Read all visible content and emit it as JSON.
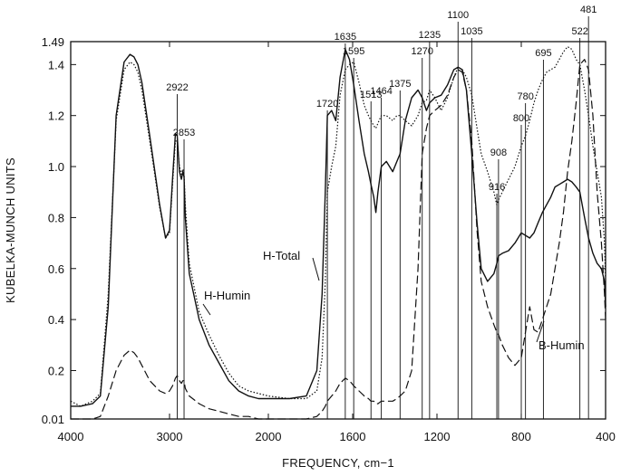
{
  "chart_data": {
    "type": "line",
    "title": "",
    "xlabel": "FREQUENCY, cm−1",
    "ylabel": "KUBELKA-MUNCH  UNITS",
    "x_unit": "cm−1",
    "xlim": [
      4000,
      400
    ],
    "ylim": [
      0.01,
      1.49
    ],
    "x_scale": "piecewise: 4000-2000 compressed, 2000-400 expanded",
    "x_ticks": [
      4000,
      3000,
      2000,
      1600,
      1200,
      800,
      400
    ],
    "x_tick_labels": [
      "4000",
      "3000",
      "2000",
      "1600",
      "1200",
      "800",
      "400"
    ],
    "y_ticks": [
      0.01,
      0.2,
      0.4,
      0.6,
      0.8,
      1.0,
      1.2,
      1.4,
      1.49
    ],
    "y_tick_labels": [
      "0.01",
      "0.2",
      "0.4",
      "0.6",
      "0.8",
      "1.0",
      "1.2",
      "1.4",
      "1.49"
    ],
    "grid": false,
    "peak_labels": [
      {
        "x": 2922,
        "text": "2922",
        "y_top": 1.14
      },
      {
        "x": 2853,
        "text": "2853",
        "y_top": 0.98
      },
      {
        "x": 1720,
        "text": "1720",
        "y_top": 1.2
      },
      {
        "x": 1635,
        "text": "1635",
        "y_top": 1.45
      },
      {
        "x": 1595,
        "text": "1595",
        "y_top": 1.39
      },
      {
        "x": 1513,
        "text": "1513",
        "y_top": 1.14
      },
      {
        "x": 1464,
        "text": "1464",
        "y_top": 1.22
      },
      {
        "x": 1375,
        "text": "1375",
        "y_top": 1.2
      },
      {
        "x": 1270,
        "text": "1270",
        "y_top": 1.3
      },
      {
        "x": 1235,
        "text": "1235",
        "y_top": 1.35
      },
      {
        "x": 1100,
        "text": "1100",
        "y_top": 1.39
      },
      {
        "x": 1035,
        "text": "1035",
        "y_top": 1.36
      },
      {
        "x": 916,
        "text": "916",
        "y_top": 0.73
      },
      {
        "x": 908,
        "text": "908",
        "y_top": 0.88
      },
      {
        "x": 800,
        "text": "800",
        "y_top": 1.02
      },
      {
        "x": 780,
        "text": "780",
        "y_top": 1.13
      },
      {
        "x": 695,
        "text": "695",
        "y_top": 1.33
      },
      {
        "x": 522,
        "text": "522",
        "y_top": 1.42
      },
      {
        "x": 481,
        "text": "481",
        "y_top": 1.47
      }
    ],
    "series": [
      {
        "name": "H-Total",
        "style": "solid",
        "x": [
          4000,
          3900,
          3780,
          3700,
          3620,
          3540,
          3460,
          3400,
          3360,
          3320,
          3280,
          3200,
          3100,
          3040,
          3000,
          2970,
          2940,
          2922,
          2900,
          2880,
          2865,
          2853,
          2840,
          2800,
          2700,
          2600,
          2500,
          2400,
          2300,
          2200,
          2100,
          2000,
          1900,
          1820,
          1770,
          1745,
          1730,
          1720,
          1700,
          1680,
          1660,
          1635,
          1615,
          1595,
          1570,
          1545,
          1525,
          1513,
          1500,
          1490,
          1480,
          1464,
          1440,
          1410,
          1390,
          1375,
          1350,
          1320,
          1290,
          1270,
          1250,
          1235,
          1210,
          1180,
          1150,
          1120,
          1100,
          1080,
          1060,
          1035,
          1010,
          990,
          960,
          930,
          916,
          908,
          890,
          860,
          830,
          800,
          780,
          760,
          740,
          720,
          700,
          680,
          660,
          640,
          620,
          600,
          580,
          560,
          540,
          522,
          500,
          481,
          460,
          440,
          420,
          405,
          400
        ],
        "values": [
          0.06,
          0.06,
          0.07,
          0.1,
          0.45,
          1.2,
          1.41,
          1.44,
          1.43,
          1.4,
          1.33,
          1.12,
          0.85,
          0.72,
          0.75,
          0.95,
          1.13,
          1.12,
          0.98,
          0.95,
          0.98,
          0.96,
          0.8,
          0.58,
          0.4,
          0.3,
          0.23,
          0.16,
          0.12,
          0.1,
          0.09,
          0.09,
          0.09,
          0.1,
          0.2,
          0.5,
          0.9,
          1.2,
          1.22,
          1.18,
          1.35,
          1.46,
          1.42,
          1.32,
          1.18,
          1.05,
          0.98,
          0.93,
          0.88,
          0.82,
          0.9,
          1.0,
          1.02,
          0.98,
          1.02,
          1.05,
          1.18,
          1.27,
          1.3,
          1.27,
          1.22,
          1.25,
          1.27,
          1.28,
          1.32,
          1.38,
          1.39,
          1.38,
          1.3,
          1.05,
          0.78,
          0.6,
          0.55,
          0.58,
          0.62,
          0.65,
          0.66,
          0.67,
          0.7,
          0.74,
          0.73,
          0.72,
          0.74,
          0.78,
          0.82,
          0.85,
          0.88,
          0.92,
          0.93,
          0.94,
          0.95,
          0.94,
          0.92,
          0.9,
          0.8,
          0.72,
          0.66,
          0.62,
          0.6,
          0.55,
          0.45
        ]
      },
      {
        "name": "H-Humin",
        "style": "dotted",
        "x": [
          4000,
          3900,
          3780,
          3700,
          3620,
          3540,
          3460,
          3400,
          3360,
          3320,
          3280,
          3200,
          3100,
          3040,
          3000,
          2970,
          2940,
          2922,
          2900,
          2880,
          2865,
          2853,
          2840,
          2800,
          2700,
          2600,
          2500,
          2400,
          2300,
          2200,
          2100,
          2000,
          1900,
          1820,
          1770,
          1745,
          1730,
          1720,
          1700,
          1680,
          1660,
          1635,
          1615,
          1595,
          1570,
          1545,
          1525,
          1513,
          1500,
          1490,
          1480,
          1464,
          1440,
          1410,
          1390,
          1375,
          1350,
          1320,
          1290,
          1270,
          1250,
          1235,
          1210,
          1180,
          1150,
          1120,
          1100,
          1080,
          1060,
          1035,
          1010,
          990,
          960,
          930,
          916,
          908,
          890,
          860,
          830,
          800,
          780,
          760,
          740,
          720,
          700,
          680,
          660,
          640,
          620,
          600,
          580,
          560,
          540,
          522,
          500,
          481,
          460,
          440,
          420,
          405,
          400
        ],
        "values": [
          0.08,
          0.06,
          0.08,
          0.11,
          0.5,
          1.18,
          1.38,
          1.41,
          1.4,
          1.37,
          1.3,
          1.1,
          0.84,
          0.72,
          0.74,
          0.93,
          1.1,
          1.1,
          1.0,
          0.97,
          0.99,
          0.97,
          0.85,
          0.62,
          0.43,
          0.34,
          0.26,
          0.19,
          0.14,
          0.12,
          0.11,
          0.1,
          0.09,
          0.09,
          0.12,
          0.25,
          0.55,
          0.9,
          1.0,
          1.08,
          1.28,
          1.38,
          1.4,
          1.41,
          1.33,
          1.24,
          1.2,
          1.18,
          1.16,
          1.15,
          1.17,
          1.2,
          1.2,
          1.18,
          1.2,
          1.2,
          1.18,
          1.16,
          1.2,
          1.25,
          1.26,
          1.3,
          1.27,
          1.22,
          1.27,
          1.35,
          1.39,
          1.38,
          1.35,
          1.28,
          1.15,
          1.05,
          0.98,
          0.9,
          0.85,
          0.87,
          0.9,
          0.95,
          1.0,
          1.08,
          1.12,
          1.18,
          1.25,
          1.3,
          1.34,
          1.37,
          1.38,
          1.39,
          1.42,
          1.45,
          1.47,
          1.46,
          1.42,
          1.4,
          1.3,
          1.2,
          1.08,
          0.98,
          0.88,
          0.7,
          0.55
        ]
      },
      {
        "name": "B-Humin",
        "style": "dashed",
        "x": [
          4000,
          3900,
          3780,
          3700,
          3620,
          3540,
          3460,
          3400,
          3360,
          3320,
          3280,
          3200,
          3100,
          3040,
          3000,
          2970,
          2940,
          2922,
          2900,
          2880,
          2865,
          2853,
          2840,
          2800,
          2700,
          2600,
          2500,
          2400,
          2300,
          2200,
          2100,
          2000,
          1900,
          1820,
          1770,
          1745,
          1730,
          1720,
          1700,
          1680,
          1660,
          1635,
          1615,
          1595,
          1570,
          1545,
          1525,
          1513,
          1500,
          1490,
          1480,
          1464,
          1440,
          1410,
          1390,
          1375,
          1350,
          1320,
          1290,
          1270,
          1250,
          1235,
          1210,
          1180,
          1150,
          1120,
          1100,
          1080,
          1060,
          1035,
          1010,
          990,
          960,
          930,
          916,
          908,
          890,
          860,
          830,
          800,
          780,
          760,
          740,
          720,
          700,
          680,
          660,
          640,
          620,
          600,
          580,
          560,
          540,
          522,
          500,
          481,
          460,
          440,
          420,
          405,
          400
        ],
        "values": [
          0.01,
          0.01,
          0.01,
          0.02,
          0.1,
          0.2,
          0.26,
          0.28,
          0.27,
          0.25,
          0.22,
          0.16,
          0.12,
          0.11,
          0.12,
          0.14,
          0.17,
          0.18,
          0.16,
          0.15,
          0.16,
          0.16,
          0.13,
          0.1,
          0.07,
          0.05,
          0.04,
          0.03,
          0.02,
          0.02,
          0.01,
          0.01,
          0.01,
          0.01,
          0.02,
          0.04,
          0.06,
          0.08,
          0.1,
          0.12,
          0.15,
          0.17,
          0.16,
          0.14,
          0.12,
          0.1,
          0.09,
          0.08,
          0.08,
          0.07,
          0.07,
          0.08,
          0.08,
          0.08,
          0.09,
          0.1,
          0.12,
          0.2,
          0.6,
          1.05,
          1.15,
          1.2,
          1.22,
          1.24,
          1.28,
          1.35,
          1.38,
          1.37,
          1.3,
          1.1,
          0.75,
          0.55,
          0.45,
          0.38,
          0.35,
          0.34,
          0.3,
          0.25,
          0.22,
          0.25,
          0.35,
          0.45,
          0.36,
          0.35,
          0.4,
          0.45,
          0.5,
          0.6,
          0.7,
          0.82,
          0.98,
          1.1,
          1.25,
          1.4,
          1.42,
          1.38,
          1.2,
          0.9,
          0.7,
          0.5,
          0.4
        ]
      }
    ],
    "series_labels": [
      {
        "series": "H-Total",
        "text": "H-Total",
        "label_x": 1850,
        "label_y": 0.83,
        "point_x": 1760,
        "point_y": 0.72
      },
      {
        "series": "H-Humin",
        "text": "H-Humin",
        "label_x": 2700,
        "label_y": 0.62,
        "point_x": 2640,
        "point_y": 0.52
      },
      {
        "series": "B-Humin",
        "text": "B-Humin",
        "label_x": 680,
        "label_y": 0.33,
        "point_x": 720,
        "point_y": 0.45
      }
    ]
  }
}
